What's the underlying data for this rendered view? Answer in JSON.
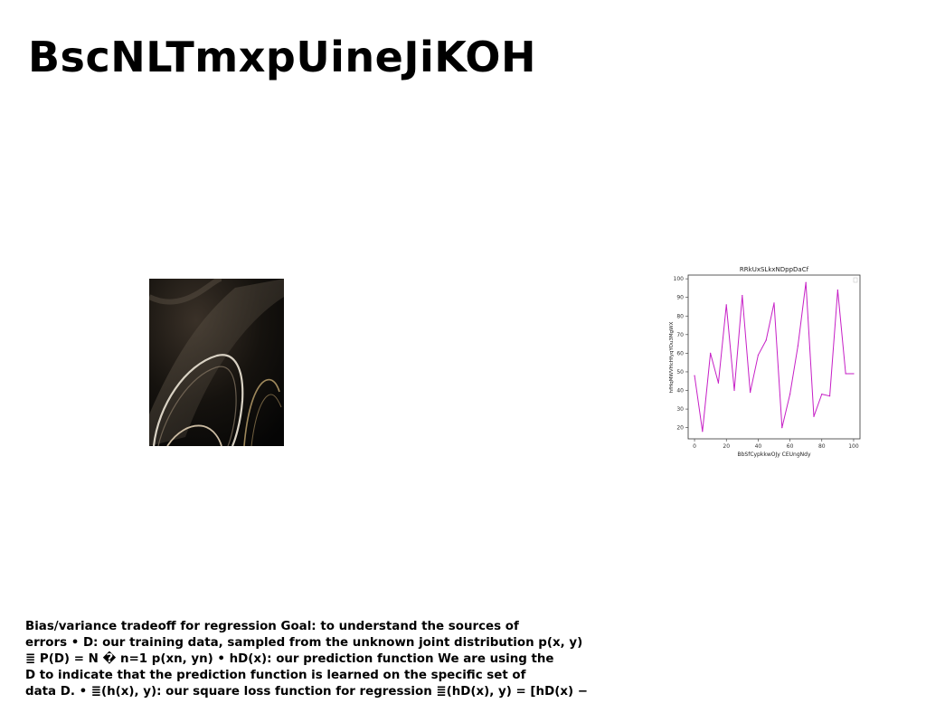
{
  "slide": {
    "title": "BscNLTmxpUineJiKOH",
    "body_text": "Bias/variance tradeoff for regression Goal: to understand the sources of\nerrors • D: our training data, sampled from the unknown joint distribution p(x, y)\n≣ P(D) = N � n=1 p(xn, yn) • hD(x): our prediction function We are using the\nD to indicate that the prediction function is learned on the specific set of\ndata D. • ≣(h(x), y): our square loss function for regression ≣(hD(x), y) = [hD(x) −"
  },
  "photo": {
    "description_icon": "abstract-curves-photo"
  },
  "chart_data": {
    "type": "line",
    "title": "RRkUxSLkxNDppDaCf",
    "xlabel": "BbSfCypkkwOJy CEUngNdy",
    "ylabel": "hfHqMWVHcHfyqYOu3MgWX",
    "xlim": [
      -4,
      104
    ],
    "ylim": [
      14,
      102
    ],
    "xticks": [
      0,
      20,
      40,
      60,
      80,
      100
    ],
    "yticks": [
      20,
      30,
      40,
      50,
      60,
      70,
      80,
      90,
      100
    ],
    "grid": false,
    "legend": "top-right",
    "color": "#c61fc6",
    "series": [
      {
        "x": [
          0,
          5,
          10,
          15,
          20,
          25,
          30,
          35,
          40,
          45,
          50,
          55,
          60,
          65,
          70,
          75,
          80,
          85,
          90,
          95,
          100
        ],
        "values": [
          48,
          18,
          60,
          44,
          86,
          40,
          91,
          39,
          59,
          67,
          87,
          20,
          38,
          64,
          98,
          26,
          38,
          37,
          94,
          49,
          49
        ]
      }
    ]
  }
}
